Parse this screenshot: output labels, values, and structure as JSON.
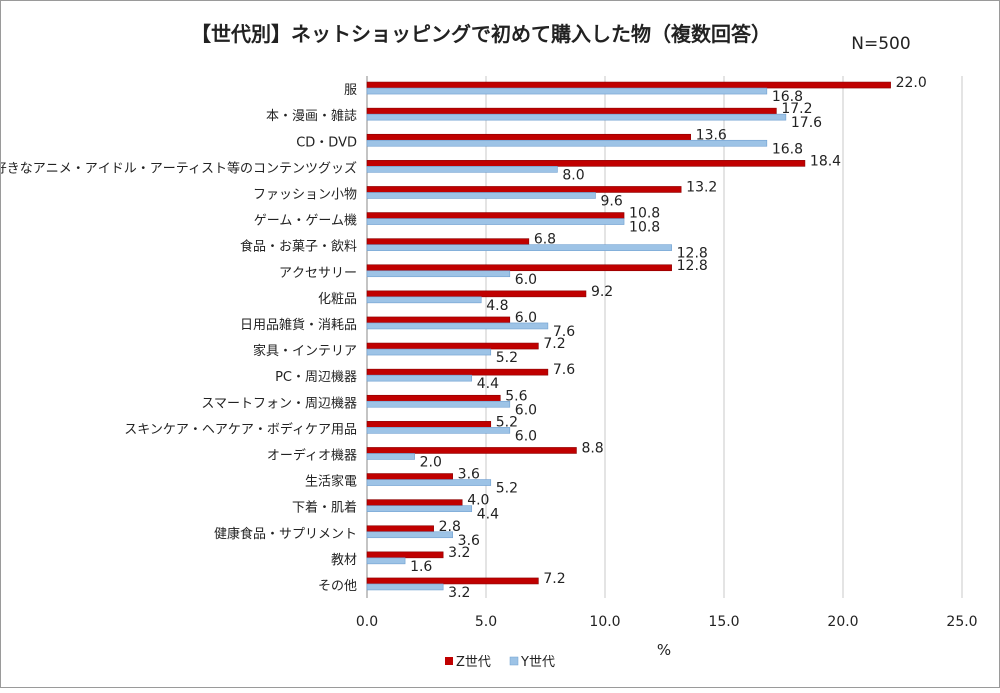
{
  "chart_data": {
    "type": "bar",
    "orientation": "horizontal",
    "title": "【世代別】ネットショッピングで初めて購入した物（複数回答）",
    "subtitle": "N=500",
    "xlabel": "%",
    "ylabel": "",
    "xlim": [
      0,
      25
    ],
    "xticks": [
      "0.0",
      "5.0",
      "10.0",
      "15.0",
      "20.0",
      "25.0"
    ],
    "grid": "vertical",
    "legend_position": "bottom",
    "categories": [
      "服",
      "本・漫画・雑誌",
      "CD・DVD",
      "好きなアニメ・アイドル・アーティスト等のコンテンツグッズ",
      "ファッション小物",
      "ゲーム・ゲーム機",
      "食品・お菓子・飲料",
      "アクセサリー",
      "化粧品",
      "日用品雑貨・消耗品",
      "家具・インテリア",
      "PC・周辺機器",
      "スマートフォン・周辺機器",
      "スキンケア・ヘアケア・ボディケア用品",
      "オーディオ機器",
      "生活家電",
      "下着・肌着",
      "健康食品・サプリメント",
      "教材",
      "その他"
    ],
    "series": [
      {
        "name": "Z世代",
        "color": "#c00000",
        "values": [
          22.0,
          17.2,
          13.6,
          18.4,
          13.2,
          10.8,
          6.8,
          12.8,
          9.2,
          6.0,
          7.2,
          7.6,
          5.6,
          5.2,
          8.8,
          3.6,
          4.0,
          2.8,
          3.2,
          7.2
        ]
      },
      {
        "name": "Y世代",
        "color": "#9dc3e6",
        "values": [
          16.8,
          17.6,
          16.8,
          8.0,
          9.6,
          10.8,
          12.8,
          6.0,
          4.8,
          7.6,
          5.2,
          4.4,
          6.0,
          6.0,
          2.0,
          5.2,
          4.4,
          3.6,
          1.6,
          3.2
        ]
      }
    ]
  }
}
